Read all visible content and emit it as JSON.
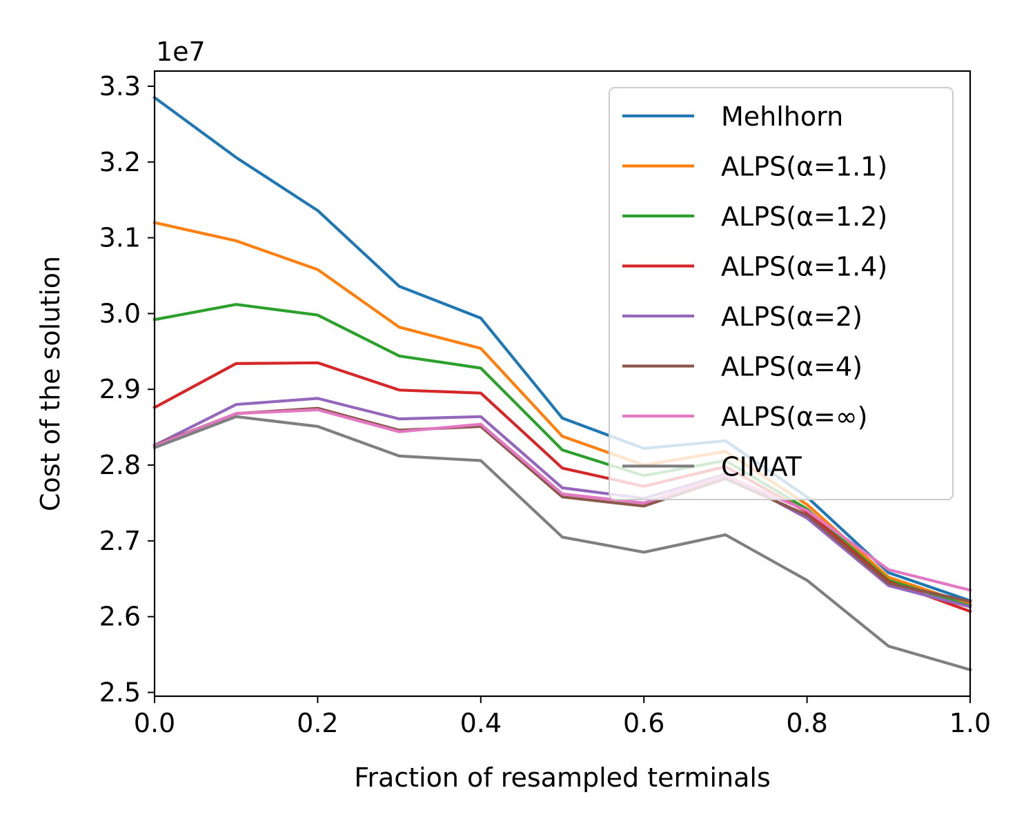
{
  "chart_data": {
    "type": "line",
    "title": "",
    "xlabel": "Fraction of resampled terminals",
    "ylabel": "Cost of the solution",
    "y_offset_label": "1e7",
    "xlim": [
      0.0,
      1.0
    ],
    "ylim": [
      2.495,
      3.32
    ],
    "x_ticks": [
      0.0,
      0.2,
      0.4,
      0.6,
      0.8,
      1.0
    ],
    "x_tick_labels": [
      "0.0",
      "0.2",
      "0.4",
      "0.6",
      "0.8",
      "1.0"
    ],
    "y_ticks": [
      2.5,
      2.6,
      2.7,
      2.8,
      2.9,
      3.0,
      3.1,
      3.2,
      3.3
    ],
    "y_tick_labels": [
      "2.5",
      "2.6",
      "2.7",
      "2.8",
      "2.9",
      "3.0",
      "3.1",
      "3.2",
      "3.3"
    ],
    "grid": false,
    "legend_position": "top-right",
    "x": [
      0.0,
      0.1,
      0.2,
      0.3,
      0.4,
      0.5,
      0.6,
      0.7,
      0.8,
      0.9,
      1.0
    ],
    "series": [
      {
        "name": "Mehlhorn",
        "color": "#1f77b4",
        "values": [
          3.285,
          3.206,
          3.136,
          3.036,
          2.994,
          2.862,
          2.822,
          2.832,
          2.758,
          2.658,
          2.621
        ]
      },
      {
        "name": "ALPS(α=1.1)",
        "color": "#ff7f0e",
        "values": [
          3.12,
          3.096,
          3.058,
          2.982,
          2.954,
          2.838,
          2.8,
          2.818,
          2.748,
          2.652,
          2.616
        ]
      },
      {
        "name": "ALPS(α=1.2)",
        "color": "#2ca02c",
        "values": [
          2.992,
          3.012,
          2.998,
          2.944,
          2.928,
          2.82,
          2.786,
          2.806,
          2.742,
          2.648,
          2.614
        ]
      },
      {
        "name": "ALPS(α=1.4)",
        "color": "#d62728",
        "values": [
          2.876,
          2.934,
          2.935,
          2.899,
          2.895,
          2.796,
          2.772,
          2.798,
          2.738,
          2.646,
          2.607
        ]
      },
      {
        "name": "ALPS(α=2)",
        "color": "#9467bd",
        "values": [
          2.826,
          2.88,
          2.888,
          2.861,
          2.864,
          2.77,
          2.756,
          2.788,
          2.73,
          2.641,
          2.613
        ]
      },
      {
        "name": "ALPS(α=4)",
        "color": "#8c564b",
        "values": [
          2.826,
          2.868,
          2.875,
          2.846,
          2.851,
          2.758,
          2.746,
          2.782,
          2.734,
          2.644,
          2.62
        ]
      },
      {
        "name": "ALPS(α=∞)",
        "color": "#e377c2",
        "values": [
          2.825,
          2.868,
          2.873,
          2.844,
          2.854,
          2.762,
          2.75,
          2.786,
          2.74,
          2.662,
          2.635
        ]
      },
      {
        "name": "CIMAT",
        "color": "#7f7f7f",
        "values": [
          2.823,
          2.864,
          2.851,
          2.812,
          2.806,
          2.705,
          2.685,
          2.708,
          2.648,
          2.561,
          2.53
        ]
      }
    ]
  }
}
